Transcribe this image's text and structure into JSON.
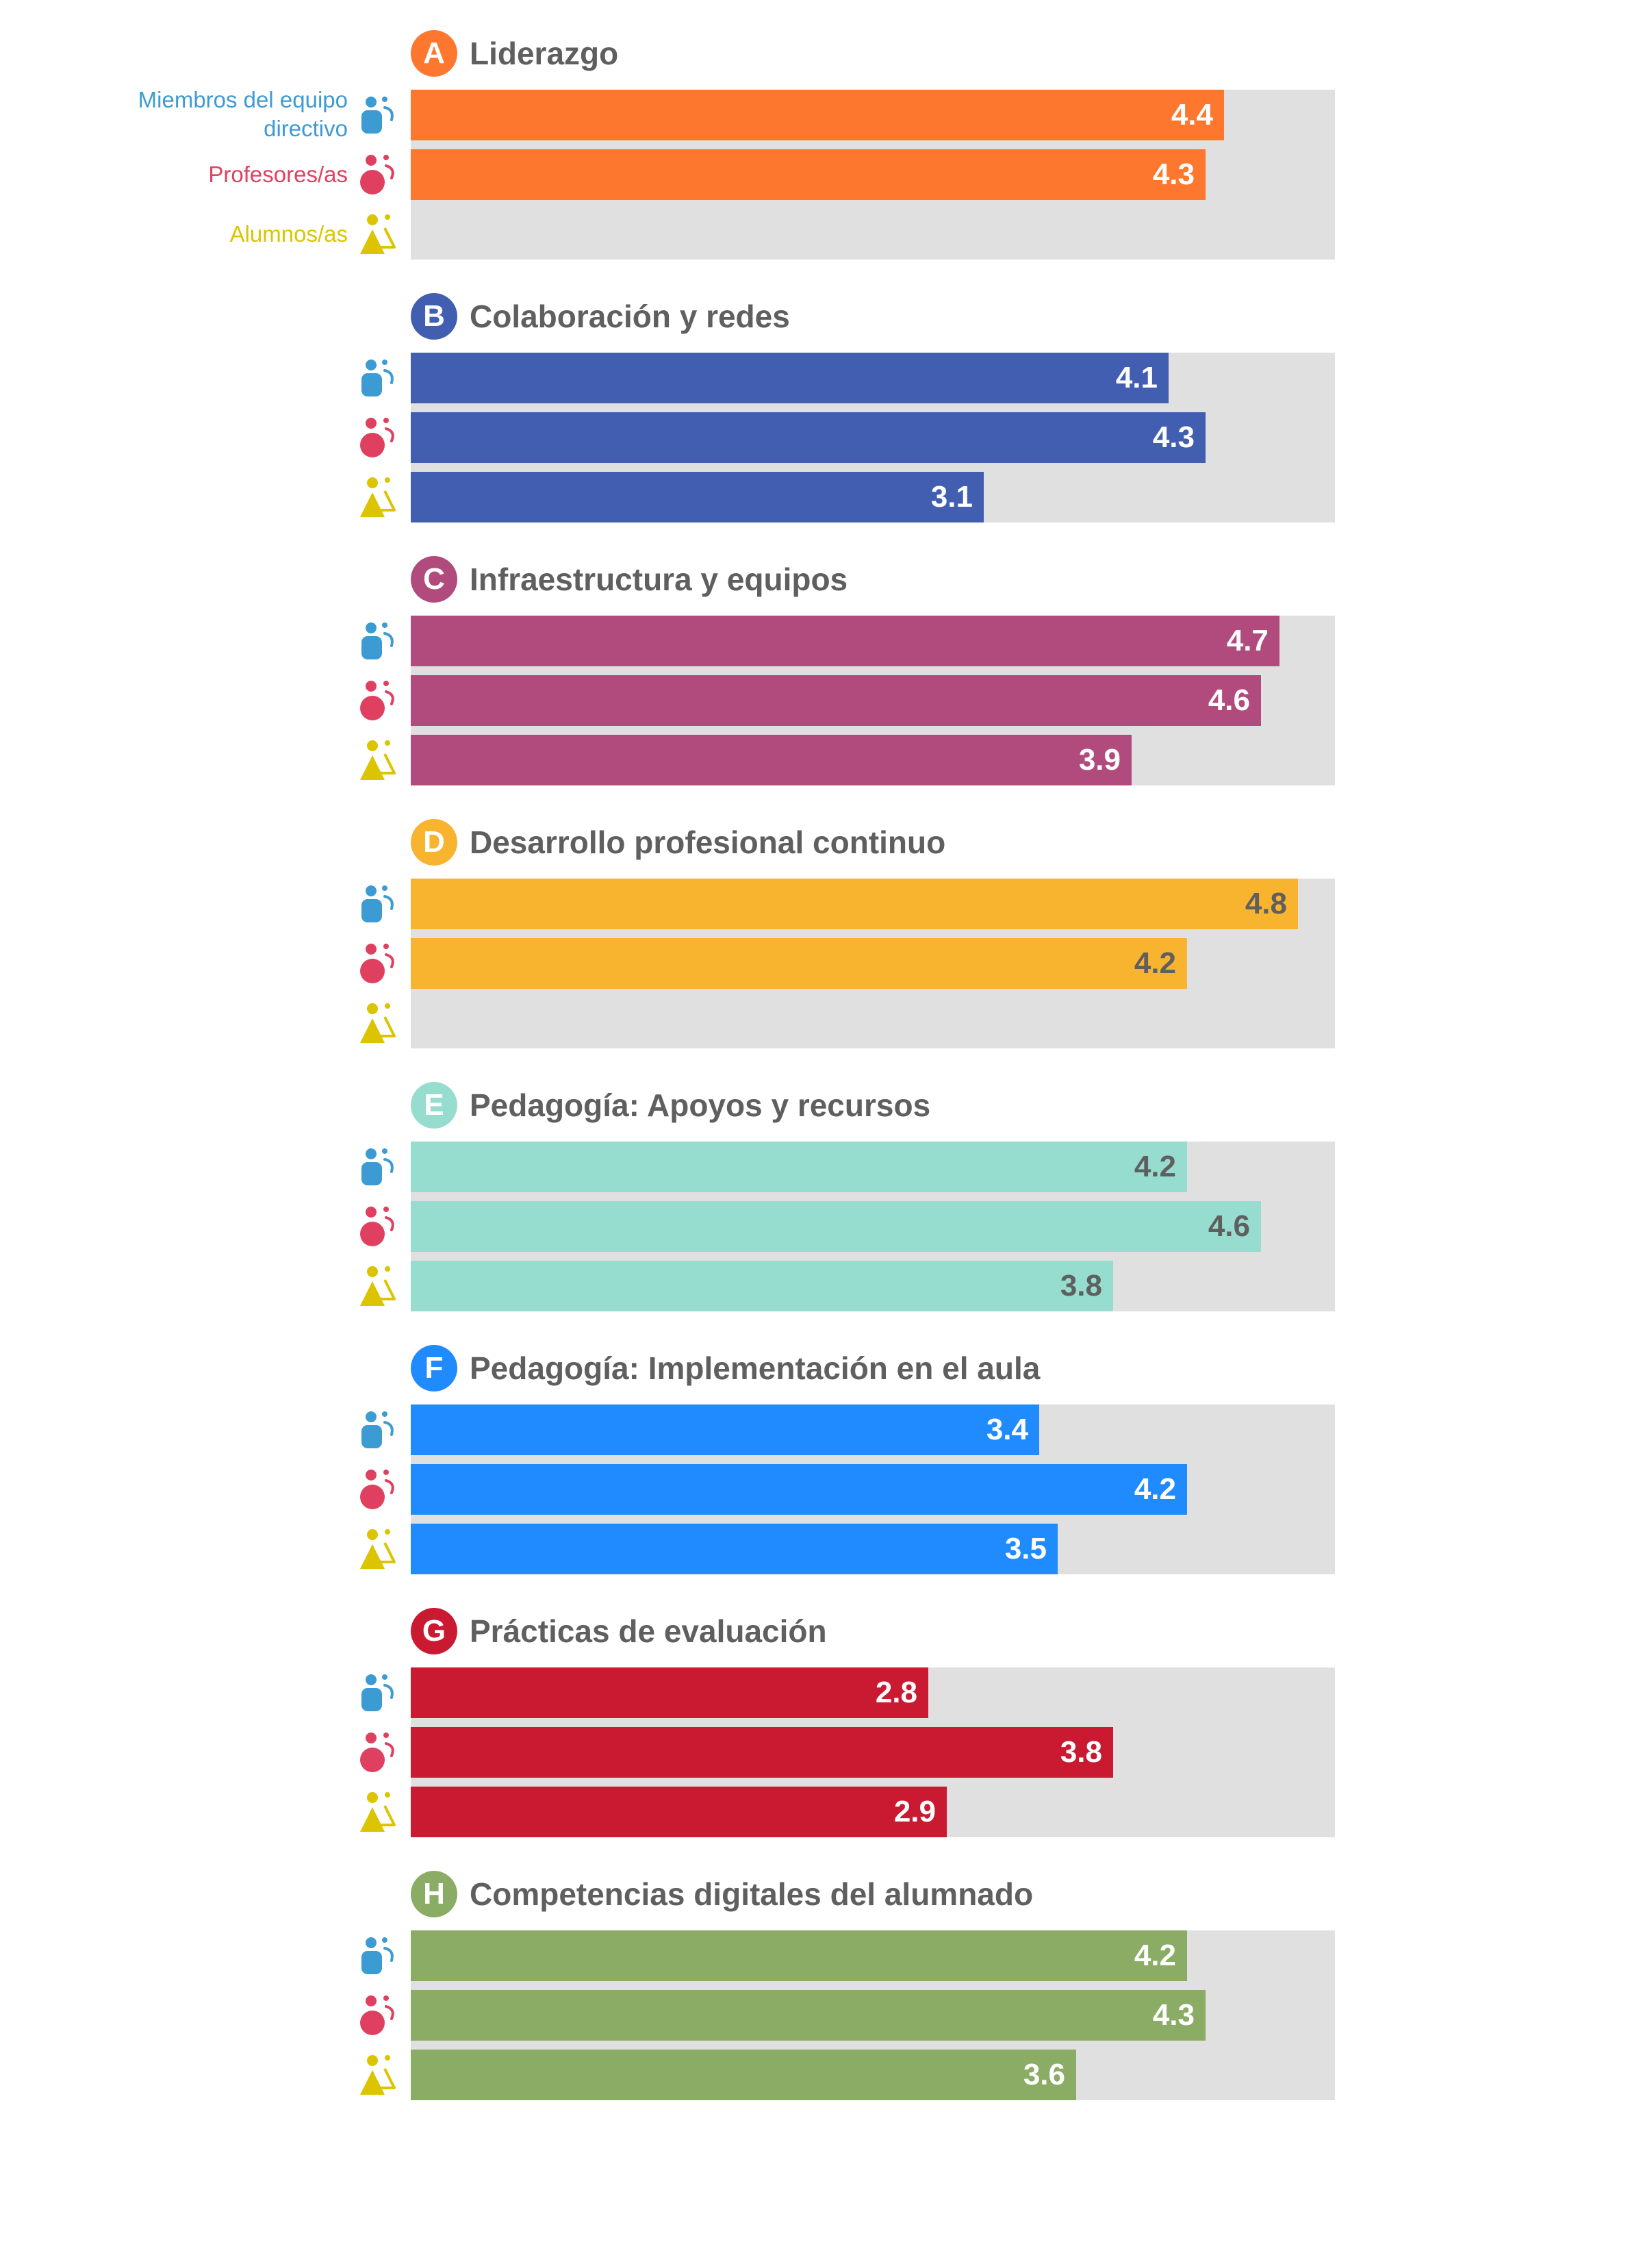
{
  "chart_data": {
    "type": "bar",
    "orientation": "horizontal",
    "xlim": [
      0,
      5
    ],
    "groups": [
      {
        "key": "equipo",
        "label": "Miembros del equipo directivo",
        "label_lines": [
          "Miembros del equipo",
          "directivo"
        ],
        "color": "#3d9bd3",
        "icon": "management-team-icon"
      },
      {
        "key": "profesores",
        "label": "Profesores/as",
        "color": "#e0405f",
        "icon": "teachers-icon"
      },
      {
        "key": "alumnos",
        "label": "Alumnos/as",
        "color": "#dcc400",
        "icon": "students-icon"
      }
    ],
    "sections": [
      {
        "letter": "A",
        "title": "Liderazgo",
        "color": "#fd782e",
        "value_color": "#ffffff",
        "values": [
          4.4,
          4.3,
          null
        ]
      },
      {
        "letter": "B",
        "title": "Colaboración y redes",
        "color": "#415eb0",
        "value_color": "#ffffff",
        "values": [
          4.1,
          4.3,
          3.1
        ]
      },
      {
        "letter": "C",
        "title": "Infraestructura y equipos",
        "color": "#b14b7e",
        "value_color": "#ffffff",
        "values": [
          4.7,
          4.6,
          3.9
        ]
      },
      {
        "letter": "D",
        "title": "Desarrollo profesional continuo",
        "color": "#f8b32f",
        "value_color": "#5f5f5f",
        "values": [
          4.8,
          4.2,
          null
        ]
      },
      {
        "letter": "E",
        "title": "Pedagogía: Apoyos y recursos",
        "color": "#96dccf",
        "value_color": "#5f5f5f",
        "values": [
          4.2,
          4.6,
          3.8
        ]
      },
      {
        "letter": "F",
        "title": "Pedagogía: Implementación en el aula",
        "color": "#1f8bfe",
        "value_color": "#ffffff",
        "values": [
          3.4,
          4.2,
          3.5
        ]
      },
      {
        "letter": "G",
        "title": "Prácticas de evaluación",
        "color": "#ca1a31",
        "value_color": "#ffffff",
        "values": [
          2.8,
          3.8,
          2.9
        ]
      },
      {
        "letter": "H",
        "title": "Competencias digitales del alumnado",
        "color": "#8bac64",
        "value_color": "#ffffff",
        "values": [
          4.2,
          4.3,
          3.6
        ]
      }
    ]
  }
}
